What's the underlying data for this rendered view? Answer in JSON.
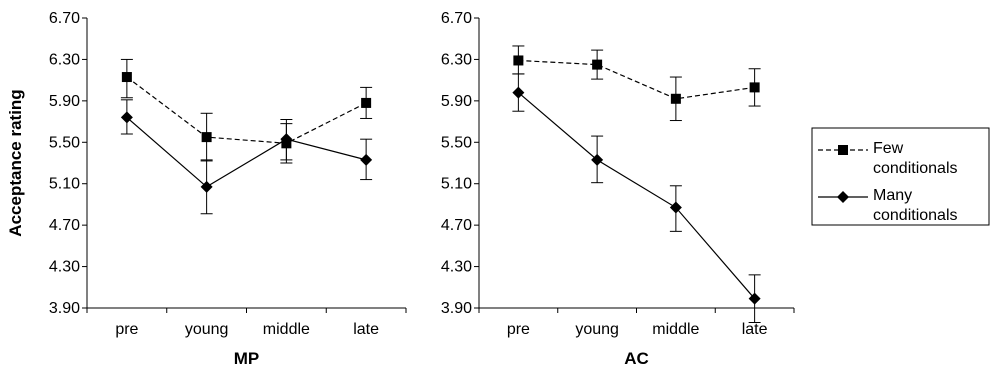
{
  "chart_data": [
    {
      "type": "line",
      "xlabel": "MP",
      "ylabel": "Acceptance rating",
      "categories": [
        "pre",
        "young",
        "middle",
        "late"
      ],
      "ylim": [
        3.9,
        6.7
      ],
      "yticks": [
        "3.90",
        "4.30",
        "4.70",
        "5.10",
        "5.50",
        "5.90",
        "6.30",
        "6.70"
      ],
      "grid": false,
      "series": [
        {
          "name": "Few conditionals",
          "marker": "square",
          "dash": true,
          "values": [
            6.13,
            5.55,
            5.49,
            5.88
          ],
          "err_low": [
            5.93,
            5.32,
            5.3,
            5.73
          ],
          "err_high": [
            6.3,
            5.78,
            5.68,
            6.03
          ]
        },
        {
          "name": "Many conditionals",
          "marker": "diamond",
          "dash": false,
          "values": [
            5.74,
            5.07,
            5.53,
            5.33
          ],
          "err_low": [
            5.58,
            4.81,
            5.33,
            5.14
          ],
          "err_high": [
            5.91,
            5.33,
            5.72,
            5.53
          ]
        }
      ]
    },
    {
      "type": "line",
      "xlabel": "AC",
      "ylabel": "",
      "categories": [
        "pre",
        "young",
        "middle",
        "late"
      ],
      "ylim": [
        3.9,
        6.7
      ],
      "yticks": [
        "3.90",
        "4.30",
        "4.70",
        "5.10",
        "5.50",
        "5.90",
        "6.30",
        "6.70"
      ],
      "grid": false,
      "series": [
        {
          "name": "Few conditionals",
          "marker": "square",
          "dash": true,
          "values": [
            6.29,
            6.25,
            5.92,
            6.03
          ],
          "err_low": [
            6.16,
            6.11,
            5.71,
            5.85
          ],
          "err_high": [
            6.43,
            6.39,
            6.13,
            6.21
          ]
        },
        {
          "name": "Many conditionals",
          "marker": "diamond",
          "dash": false,
          "values": [
            5.98,
            5.33,
            4.87,
            3.99
          ],
          "err_low": [
            5.8,
            5.11,
            4.64,
            3.76
          ],
          "err_high": [
            6.16,
            5.56,
            5.08,
            4.22
          ]
        }
      ]
    }
  ],
  "legend": {
    "position": "right",
    "items": [
      {
        "line1": "Few",
        "line2": "conditionals"
      },
      {
        "line1": "Many",
        "line2": "conditionals"
      }
    ]
  }
}
